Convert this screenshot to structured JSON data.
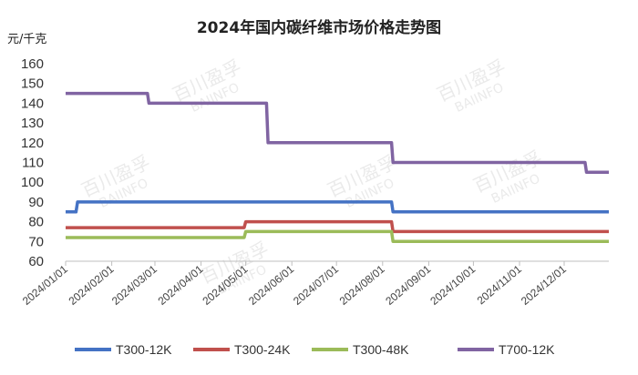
{
  "chart_data": {
    "type": "line",
    "title": "2024年国内碳纤维市场价格走势图",
    "ylabel": "元/千克",
    "ylim": [
      60,
      160
    ],
    "yticks": [
      60,
      70,
      80,
      90,
      100,
      110,
      120,
      130,
      140,
      150,
      160
    ],
    "x_ticks": [
      "2024/01/01",
      "2024/02/01",
      "2024/03/01",
      "2024/04/01",
      "2024/05/01",
      "2024/06/01",
      "2024/07/01",
      "2024/08/01",
      "2024/09/01",
      "2024/10/01",
      "2024/11/01",
      "2024/12/01"
    ],
    "x_range": [
      "2024/01/01",
      "2024/12/31"
    ],
    "grid": false,
    "legend_position": "bottom",
    "series": [
      {
        "name": "T300-12K",
        "color": "#4472C4",
        "points": [
          [
            "2024/01/01",
            85
          ],
          [
            "2024/01/08",
            85
          ],
          [
            "2024/01/09",
            90
          ],
          [
            "2024/08/07",
            90
          ],
          [
            "2024/08/08",
            85
          ],
          [
            "2024/12/31",
            85
          ]
        ]
      },
      {
        "name": "T300-24K",
        "color": "#C0504D",
        "points": [
          [
            "2024/01/01",
            77
          ],
          [
            "2024/04/30",
            77
          ],
          [
            "2024/05/01",
            80
          ],
          [
            "2024/08/07",
            80
          ],
          [
            "2024/08/08",
            75
          ],
          [
            "2024/12/31",
            75
          ]
        ]
      },
      {
        "name": "T300-48K",
        "color": "#9BBB59",
        "points": [
          [
            "2024/01/01",
            72
          ],
          [
            "2024/04/30",
            72
          ],
          [
            "2024/05/01",
            75
          ],
          [
            "2024/08/07",
            75
          ],
          [
            "2024/08/08",
            70
          ],
          [
            "2024/12/31",
            70
          ]
        ]
      },
      {
        "name": "T700-12K",
        "color": "#8064A2",
        "points": [
          [
            "2024/01/01",
            145
          ],
          [
            "2024/02/25",
            145
          ],
          [
            "2024/02/26",
            140
          ],
          [
            "2024/05/15",
            140
          ],
          [
            "2024/05/16",
            120
          ],
          [
            "2024/08/07",
            120
          ],
          [
            "2024/08/08",
            110
          ],
          [
            "2024/12/15",
            110
          ],
          [
            "2024/12/16",
            105
          ],
          [
            "2024/12/31",
            105
          ]
        ]
      }
    ]
  },
  "watermark": {
    "text_cn": "百川盈孚",
    "text_en": "BAIINFO"
  }
}
